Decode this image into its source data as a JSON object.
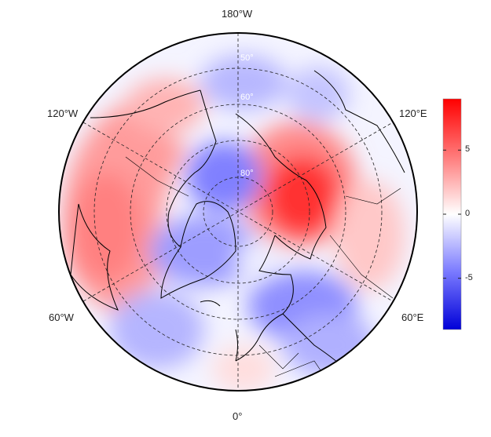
{
  "map": {
    "projection": "north-polar-stereographic",
    "longitude_labels": {
      "top": "180°W",
      "bottom": "0°",
      "upper_left": "120°W",
      "upper_right": "120°E",
      "lower_left": "60°W",
      "lower_right": "60°E"
    },
    "latitude_labels": [
      "50°",
      "60°",
      "80°"
    ],
    "graticule": {
      "latitudes": [
        50,
        60,
        70,
        80
      ],
      "longitude_step": 60,
      "style": "dashed"
    },
    "features": [
      "coastlines",
      "country-borders"
    ],
    "anomaly_regions": [
      {
        "region": "Siberia / Kara Sea",
        "sign": "positive",
        "peak": 8
      },
      {
        "region": "Canada / Alaska",
        "sign": "positive",
        "peak": 4
      },
      {
        "region": "Greenland / Arctic Canada",
        "sign": "negative",
        "peak": -4
      },
      {
        "region": "Scandinavia / Northern Europe",
        "sign": "negative",
        "peak": -3
      },
      {
        "region": "North Pacific (Kamchatka)",
        "sign": "negative",
        "peak": -3
      },
      {
        "region": "North Atlantic / Western Europe",
        "sign": "negative",
        "peak": -2
      }
    ]
  },
  "colorbar": {
    "min": -9,
    "max": 9,
    "ticks": [
      {
        "value": 5,
        "label": "5"
      },
      {
        "value": 0,
        "label": "0"
      },
      {
        "value": -5,
        "label": "-5"
      }
    ],
    "colors": {
      "low": "#0000d8",
      "mid": "#ffffff",
      "high": "#ff0000"
    }
  }
}
